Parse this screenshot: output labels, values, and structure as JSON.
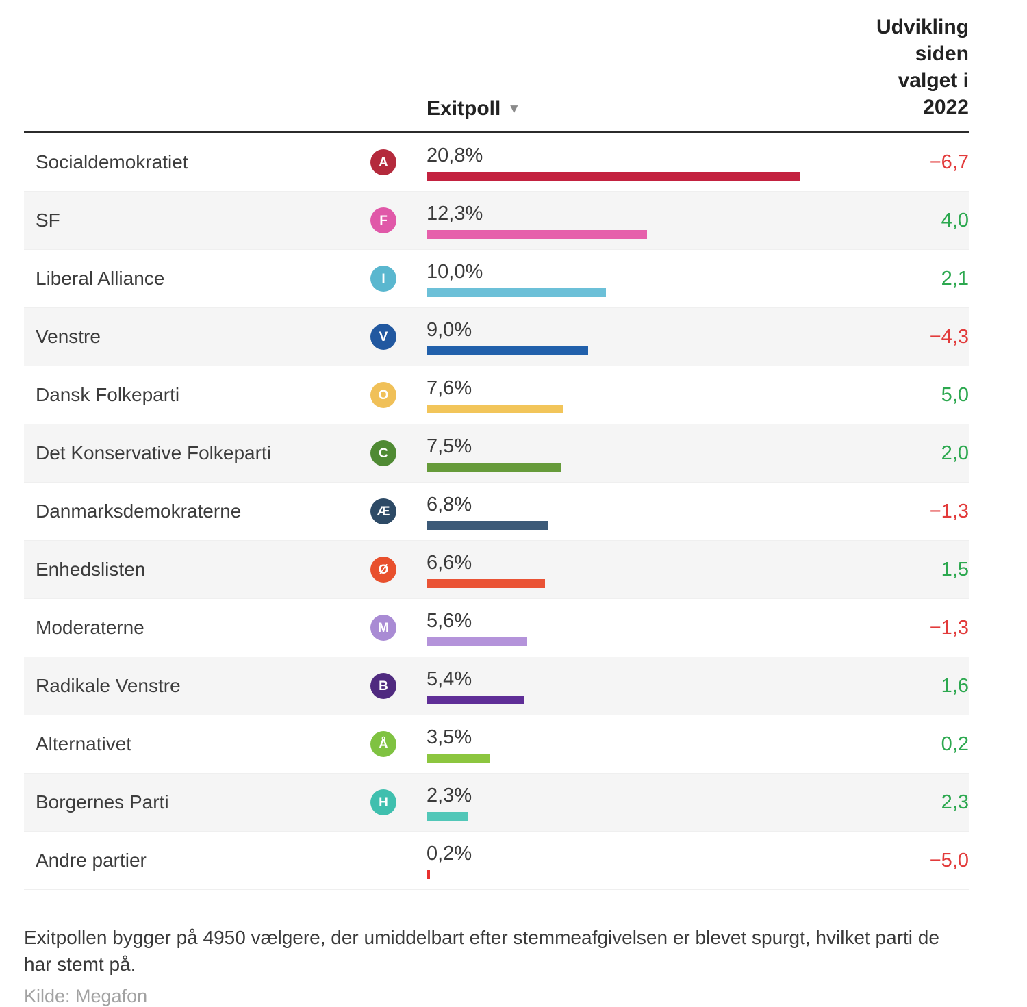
{
  "header": {
    "exitpoll_label": "Exitpoll",
    "sort_icon": "▼",
    "change_label": "Udvikling siden valget i 2022"
  },
  "chart_data": {
    "type": "bar",
    "title": "Exitpoll",
    "unit": "%",
    "xlim": [
      0,
      25
    ],
    "legend_position": "none",
    "grid": false,
    "rows": [
      {
        "party": "Socialdemokratiet",
        "letter": "A",
        "icon_color": "#b42a3c",
        "bar_color": "#c32240",
        "value": 20.8,
        "value_label": "20,8%",
        "change": "−6,7",
        "change_value": -6.7,
        "change_dir": "negative"
      },
      {
        "party": "SF",
        "letter": "F",
        "icon_color": "#e058a8",
        "bar_color": "#e660ab",
        "value": 12.3,
        "value_label": "12,3%",
        "change": "4,0",
        "change_value": 4.0,
        "change_dir": "positive"
      },
      {
        "party": "Liberal Alliance",
        "letter": "I",
        "icon_color": "#5ab7cf",
        "bar_color": "#6cc0d8",
        "value": 10.0,
        "value_label": "10,0%",
        "change": "2,1",
        "change_value": 2.1,
        "change_dir": "positive"
      },
      {
        "party": "Venstre",
        "letter": "V",
        "icon_color": "#2158a0",
        "bar_color": "#2160ab",
        "value": 9.0,
        "value_label": "9,0%",
        "change": "−4,3",
        "change_value": -4.3,
        "change_dir": "negative"
      },
      {
        "party": "Dansk Folkeparti",
        "letter": "O",
        "icon_color": "#f0c058",
        "bar_color": "#f2c55a",
        "value": 7.6,
        "value_label": "7,6%",
        "change": "5,0",
        "change_value": 5.0,
        "change_dir": "positive"
      },
      {
        "party": "Det Konservative Folkeparti",
        "letter": "C",
        "icon_color": "#4f8a33",
        "bar_color": "#669b3a",
        "value": 7.5,
        "value_label": "7,5%",
        "change": "2,0",
        "change_value": 2.0,
        "change_dir": "positive"
      },
      {
        "party": "Danmarksdemokraterne",
        "letter": "Æ",
        "icon_color": "#2d4a66",
        "bar_color": "#3c5a78",
        "value": 6.8,
        "value_label": "6,8%",
        "change": "−1,3",
        "change_value": -1.3,
        "change_dir": "negative"
      },
      {
        "party": "Enhedslisten",
        "letter": "Ø",
        "icon_color": "#e8502d",
        "bar_color": "#ea5335",
        "value": 6.6,
        "value_label": "6,6%",
        "change": "1,5",
        "change_value": 1.5,
        "change_dir": "positive"
      },
      {
        "party": "Moderaterne",
        "letter": "M",
        "icon_color": "#a98bd4",
        "bar_color": "#b493da",
        "value": 5.6,
        "value_label": "5,6%",
        "change": "−1,3",
        "change_value": -1.3,
        "change_dir": "negative"
      },
      {
        "party": "Radikale Venstre",
        "letter": "B",
        "icon_color": "#4f2a7f",
        "bar_color": "#5f2e97",
        "value": 5.4,
        "value_label": "5,4%",
        "change": "1,6",
        "change_value": 1.6,
        "change_dir": "positive"
      },
      {
        "party": "Alternativet",
        "letter": "Å",
        "icon_color": "#7fc241",
        "bar_color": "#8cc63f",
        "value": 3.5,
        "value_label": "3,5%",
        "change": "0,2",
        "change_value": 0.2,
        "change_dir": "positive"
      },
      {
        "party": "Borgernes Parti",
        "letter": "H",
        "icon_color": "#3fbfae",
        "bar_color": "#52c7b8",
        "value": 2.3,
        "value_label": "2,3%",
        "change": "2,3",
        "change_value": 2.3,
        "change_dir": "positive"
      },
      {
        "party": "Andre partier",
        "letter": "",
        "icon_color": "",
        "bar_color": "#e8312f",
        "value": 0.2,
        "value_label": "0,2%",
        "change": "−5,0",
        "change_value": -5.0,
        "change_dir": "negative"
      }
    ]
  },
  "colors": {
    "positive": "#2ca84f",
    "negative": "#e23b3b",
    "row_alt_bg": "#f5f5f5",
    "header_rule": "#2b2b2b"
  },
  "footer": {
    "note": "Exitpollen bygger på 4950 vælgere, der umiddelbart efter stemmeafgivelsen er blevet spurgt, hvilket parti de har stemt på.",
    "source": "Kilde: Megafon"
  }
}
